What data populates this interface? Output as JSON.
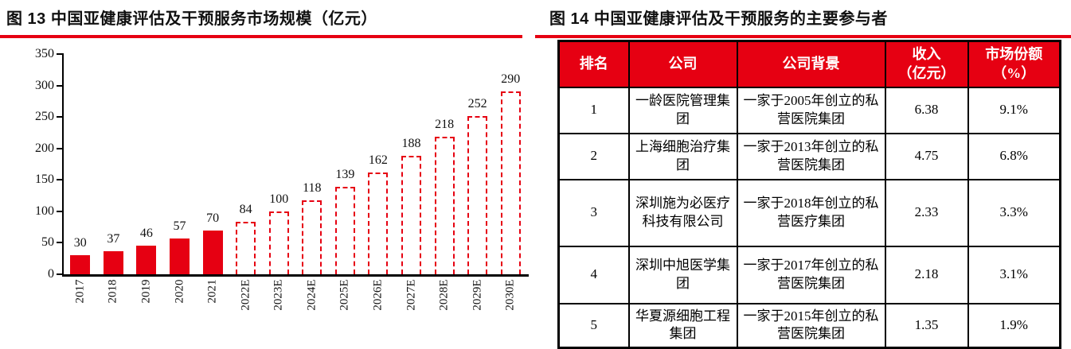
{
  "figure13": {
    "title": "图 13 中国亚健康评估及干预服务市场规模（亿元）"
  },
  "figure14": {
    "title": "图 14 中国亚健康评估及干预服务的主要参与者"
  },
  "chart_data": {
    "type": "bar",
    "title": "中国亚健康评估及干预服务市场规模（亿元）",
    "categories": [
      "2017",
      "2018",
      "2019",
      "2020",
      "2021",
      "2022E",
      "2023E",
      "2024E",
      "2025E",
      "2026E",
      "2027E",
      "2028E",
      "2029E",
      "2030E"
    ],
    "values": [
      30,
      37,
      46,
      57,
      70,
      84,
      100,
      118,
      139,
      162,
      188,
      218,
      252,
      290
    ],
    "solid_count": 5,
    "forecast_style": "dashed-outline",
    "bar_color": "#e60012",
    "xlabel": "",
    "ylabel": "",
    "ylim": [
      0,
      350
    ],
    "ytick_step": 50,
    "grid": false,
    "legend": false
  },
  "table": {
    "headers": [
      "排名",
      "公司",
      "公司背景",
      "收入\n（亿元）",
      "市场份额\n（%）"
    ],
    "rows": [
      {
        "rank": "1",
        "company": "一龄医院管理集团",
        "background": "一家于2005年创立的私营医院集团",
        "revenue": "6.38",
        "share": "9.1%"
      },
      {
        "rank": "2",
        "company": "上海细胞治疗集团",
        "background": "一家于2013年创立的私营医院集团",
        "revenue": "4.75",
        "share": "6.8%"
      },
      {
        "rank": "3",
        "company": "深圳施为必医疗科技有限公司",
        "background": "一家于2018年创立的私营医疗集团",
        "revenue": "2.33",
        "share": "3.3%"
      },
      {
        "rank": "4",
        "company": "深圳中旭医学集团",
        "background": "一家于2017年创立的私营医院集团",
        "revenue": "2.18",
        "share": "3.1%"
      },
      {
        "rank": "5",
        "company": "华夏源细胞工程集团",
        "background": "一家于2015年创立的私营医院集团",
        "revenue": "1.35",
        "share": "1.9%"
      }
    ]
  },
  "colors": {
    "accent_red": "#e60012",
    "border_black": "#000000",
    "header_text": "#ffffff"
  }
}
